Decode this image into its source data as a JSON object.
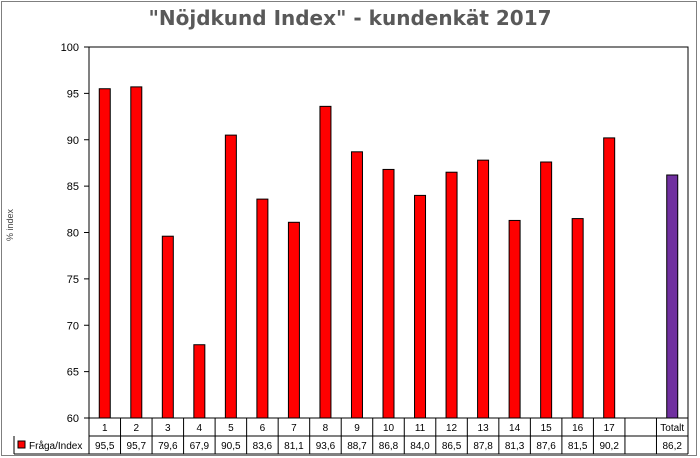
{
  "chart_data": {
    "type": "bar",
    "title": "\"Nöjdkund Index\" - kundenkät 2017",
    "ylabel": "% index",
    "ylim": [
      60,
      100
    ],
    "yticks": [
      60,
      65,
      70,
      75,
      80,
      85,
      90,
      95,
      100
    ],
    "grid": false,
    "legend": "data table, left of values row",
    "categories": [
      "1",
      "2",
      "3",
      "4",
      "5",
      "6",
      "7",
      "8",
      "9",
      "10",
      "11",
      "12",
      "13",
      "14",
      "15",
      "16",
      "17",
      "",
      "Totalt"
    ],
    "series": [
      {
        "name": "Fråga/Index",
        "color": "#ff0000",
        "values": [
          95.5,
          95.7,
          79.6,
          67.9,
          90.5,
          83.6,
          81.1,
          93.6,
          88.7,
          86.8,
          84.0,
          86.5,
          87.8,
          81.3,
          87.6,
          81.5,
          90.2,
          null,
          86.2
        ]
      }
    ],
    "total_color": "#7030a0",
    "value_labels": [
      "95,5",
      "95,7",
      "79,6",
      "67,9",
      "90,5",
      "83,6",
      "81,1",
      "93,6",
      "88,7",
      "86,8",
      "84,0",
      "86,5",
      "87,8",
      "81,3",
      "87,6",
      "81,5",
      "90,2",
      "",
      "86,2"
    ]
  }
}
